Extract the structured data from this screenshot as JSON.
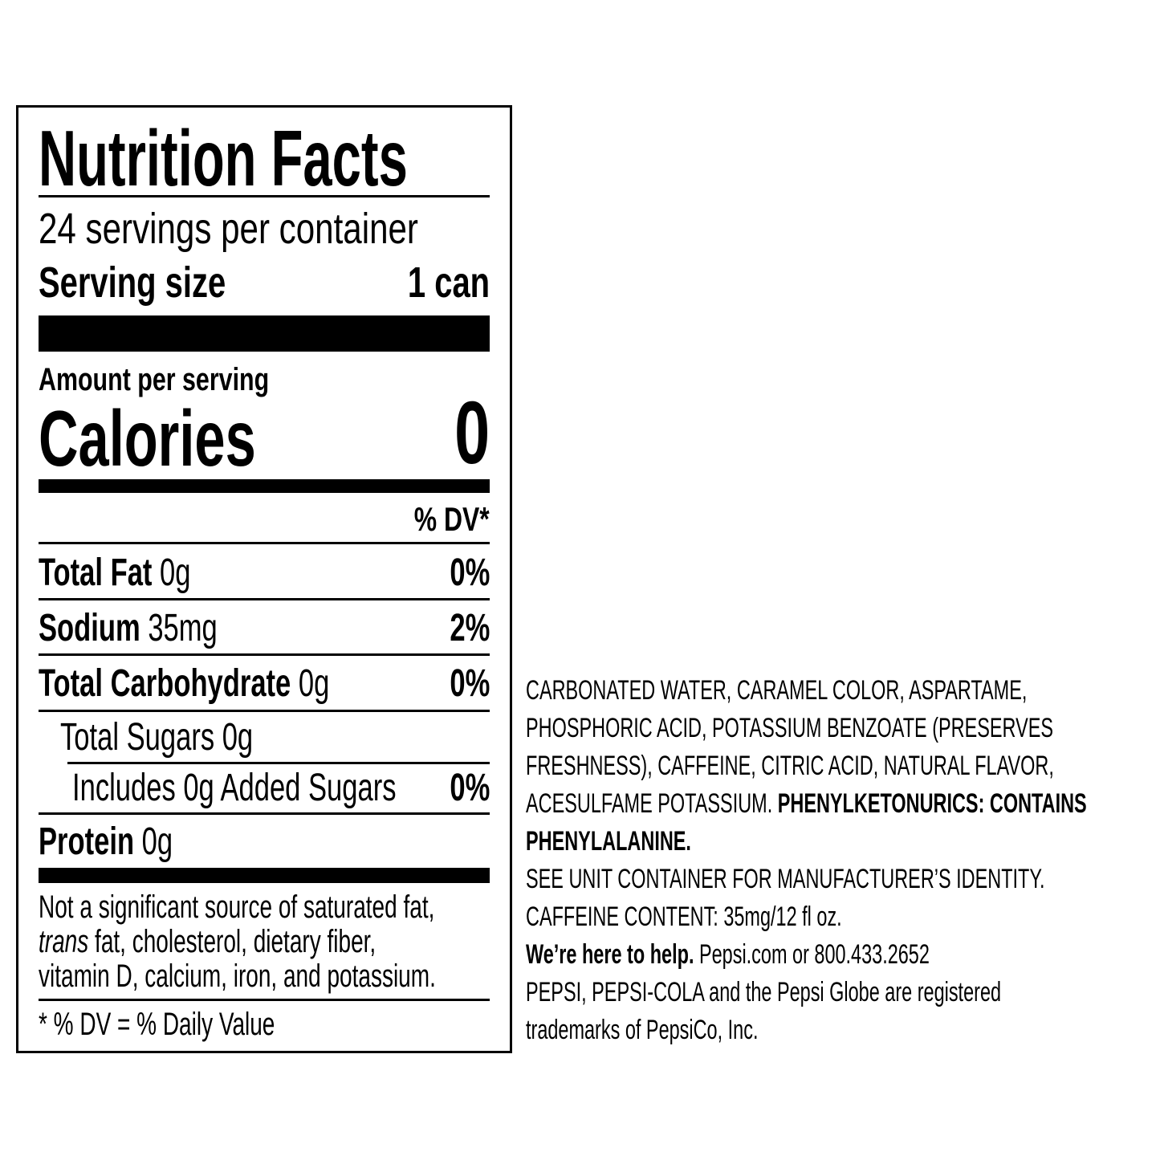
{
  "label": {
    "title": "Nutrition Facts",
    "servings_per_container": "24 servings per container",
    "serving_size_label": "Serving size",
    "serving_size_value": "1 can",
    "amount_per_serving": "Amount per serving",
    "calories_label": "Calories",
    "calories_value": "0",
    "dv_header": "% DV*",
    "nutrients": [
      {
        "name": "Total Fat",
        "amount": " 0g",
        "dv": "0%"
      },
      {
        "name": "Sodium",
        "amount": " 35mg",
        "dv": "2%"
      },
      {
        "name": "Total Carbohydrate",
        "amount": " 0g",
        "dv": "0%"
      },
      {
        "name": "Total Sugars 0g",
        "amount": "",
        "dv": ""
      },
      {
        "name": "Includes 0g Added Sugars",
        "amount": "",
        "dv": "0%"
      },
      {
        "name": "Protein",
        "amount": " 0g",
        "dv": ""
      }
    ],
    "footnote_line1": "Not a significant source of saturated fat,",
    "footnote_trans": "trans",
    "footnote_line2": " fat, cholesterol, dietary fiber,",
    "footnote_line3": "vitamin D, calcium, iron, and potassium.",
    "dv_definition": "* % DV = % Daily Value"
  },
  "ingredients": {
    "line1": "CARBONATED WATER, CARAMEL COLOR, ASPARTAME,",
    "line2": "PHOSPHORIC ACID, POTASSIUM BENZOATE (PRESERVES",
    "line3": "FRESHNESS), CAFFEINE, CITRIC ACID, NATURAL FLAVOR,",
    "line4": "ACESULFAME POTASSIUM. ",
    "line4_bold": "PHENYLKETONURICS: CONTAINS",
    "line5_bold": "PHENYLALANINE.",
    "line6": "SEE UNIT CONTAINER FOR MANUFACTURER’S IDENTITY.",
    "line7": "CAFFEINE CONTENT: 35mg/12 fl oz.",
    "line8_bold": "We’re here to help.",
    "line8": " Pepsi.com or 800.433.2652",
    "line9": "PEPSI, PEPSI-COLA and the Pepsi Globe are registered",
    "line10": "trademarks of PepsiCo, Inc."
  }
}
